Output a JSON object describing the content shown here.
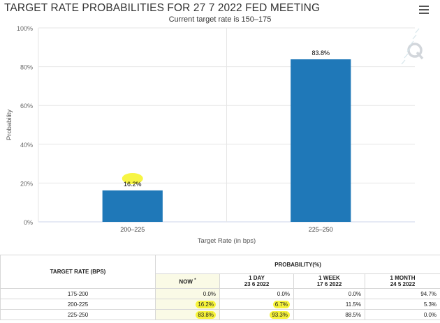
{
  "page": {
    "title": "TARGET RATE PROBABILITIES FOR 27 7 2022 FED MEETING",
    "subtitle": "Current target rate is 150–175",
    "menu_icon": "hamburger-menu-icon",
    "watermark_icon": "q-logo-icon"
  },
  "chart_data": {
    "type": "bar",
    "title": "TARGET RATE PROBABILITIES FOR 27 7 2022 FED MEETING",
    "subtitle": "Current target rate is 150–175",
    "categories": [
      "200–225",
      "225–250"
    ],
    "values": [
      16.2,
      83.8
    ],
    "value_labels": [
      "16.2%",
      "83.8%"
    ],
    "xlabel": "Target Rate (in bps)",
    "ylabel": "Probability",
    "ylim": [
      0,
      100
    ],
    "yticks": [
      "0%",
      "20%",
      "40%",
      "60%",
      "80%",
      "100%"
    ],
    "grid": true,
    "bar_color": "#1f78b8"
  },
  "table": {
    "col_rate": "TARGET RATE (BPS)",
    "col_prob": "PROBABILITY(%)",
    "sub_headers": [
      {
        "line1": "NOW",
        "line2": ""
      },
      {
        "line1": "1 DAY",
        "line2": "23 6 2022"
      },
      {
        "line1": "1 WEEK",
        "line2": "17 6 2022"
      },
      {
        "line1": "1 MONTH",
        "line2": "24 5 2022"
      }
    ],
    "now_marker": "*",
    "rows": [
      {
        "rate": "175-200",
        "now": "0.0%",
        "day": "0.0%",
        "week": "0.0%",
        "month": "94.7%"
      },
      {
        "rate": "200-225",
        "now": "16.2%",
        "day": "6.7%",
        "week": "11.5%",
        "month": "5.3%"
      },
      {
        "rate": "225-250",
        "now": "83.8%",
        "day": "93.3%",
        "week": "88.5%",
        "month": "0.0%"
      }
    ]
  },
  "colors": {
    "bar": "#1f78b8",
    "highlight": "#f7f43a",
    "now_column": "#fafae6"
  }
}
